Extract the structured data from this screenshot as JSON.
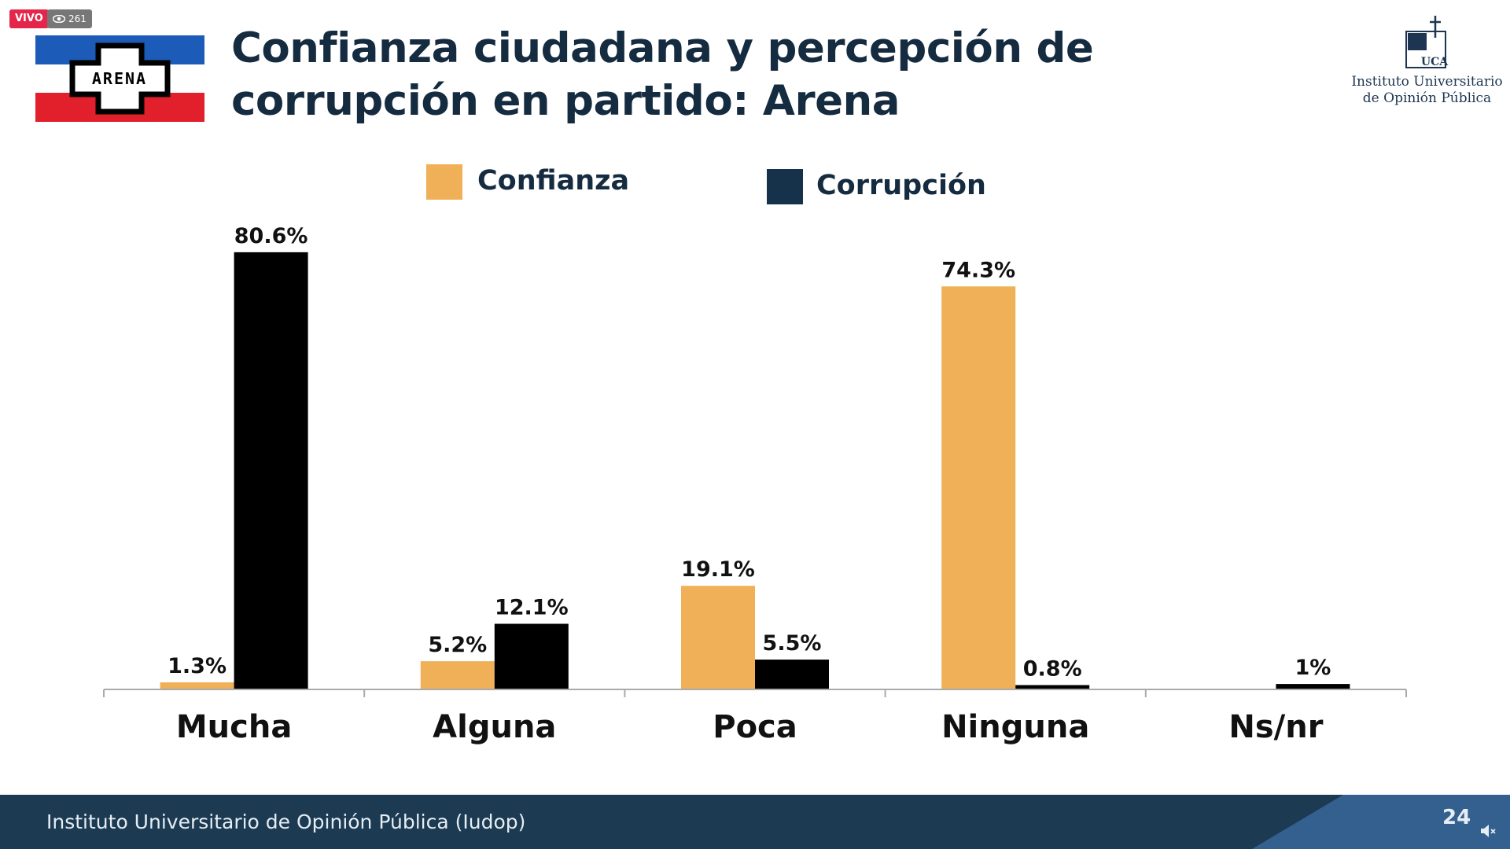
{
  "stream": {
    "live_label": "VIVO",
    "viewers": "261",
    "mute_icon": "speaker-muted-icon"
  },
  "header": {
    "title_line1": "Confianza ciudadana y percepción de",
    "title_line2": "corrupción en partido: Arena",
    "party_logo_text": "ARENA",
    "institute_logo": {
      "mark": "UCA",
      "line1": "Instituto Universitario",
      "line2": "de Opinión Pública"
    }
  },
  "footer": {
    "text": "Instituto Universitario de Opinión Pública (Iudop)",
    "page": "24"
  },
  "chart_data": {
    "type": "bar",
    "title": "Confianza ciudadana y percepción de corrupción en partido: Arena",
    "categories": [
      "Mucha",
      "Alguna",
      "Poca",
      "Ninguna",
      "Ns/nr"
    ],
    "series": [
      {
        "name": "Confianza",
        "color": "#f0b057",
        "values": [
          1.3,
          5.2,
          19.1,
          74.3,
          null
        ],
        "labels": [
          "1.3%",
          "5.2%",
          "19.1%",
          "74.3%",
          ""
        ]
      },
      {
        "name": "Corrupción",
        "color": "#000000",
        "legend_color": "#15324a",
        "values": [
          80.6,
          12.1,
          5.5,
          0.8,
          1
        ],
        "labels": [
          "80.6%",
          "12.1%",
          "5.5%",
          "0.8%",
          "1%"
        ]
      }
    ],
    "legend": "top",
    "grid": false,
    "ylim": [
      0,
      82
    ]
  }
}
